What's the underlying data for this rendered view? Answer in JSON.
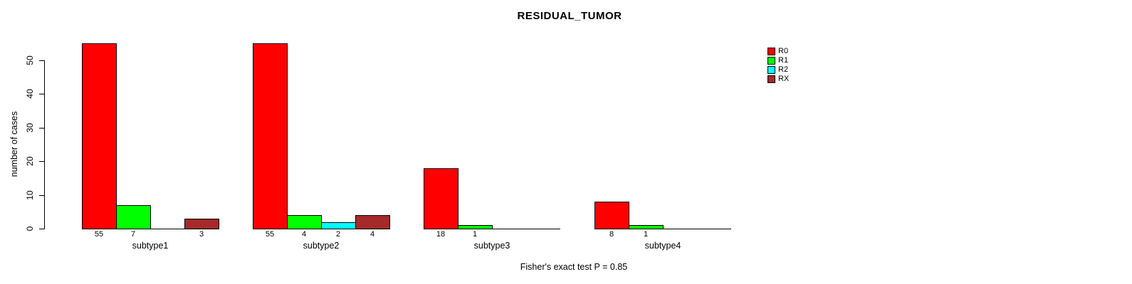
{
  "title": "RESIDUAL_TUMOR",
  "ylabel": "number of cases",
  "footnote": "Fisher's exact test P = 0.85",
  "chart_data": {
    "type": "bar",
    "grouped": true,
    "title": "RESIDUAL_TUMOR",
    "ylabel": "number of cases",
    "xlabel": "",
    "annotation": "Fisher's exact test P = 0.85",
    "categories": [
      "subtype1",
      "subtype2",
      "subtype3",
      "subtype4"
    ],
    "series": [
      {
        "name": "R0",
        "color": "#ff0000",
        "values": [
          55,
          55,
          18,
          8
        ]
      },
      {
        "name": "R1",
        "color": "#00ff00",
        "values": [
          7,
          4,
          1,
          1
        ]
      },
      {
        "name": "R2",
        "color": "#00ffff",
        "values": [
          0,
          2,
          0,
          0
        ]
      },
      {
        "name": "RX",
        "color": "#a52a2a",
        "values": [
          3,
          4,
          0,
          0
        ]
      }
    ],
    "yticks": [
      0,
      10,
      20,
      30,
      40,
      50
    ],
    "ylim": [
      0,
      55
    ],
    "grid": false,
    "legend_position": "right",
    "zero_value_labels_hidden": true,
    "value_labels_below_bars": true
  }
}
